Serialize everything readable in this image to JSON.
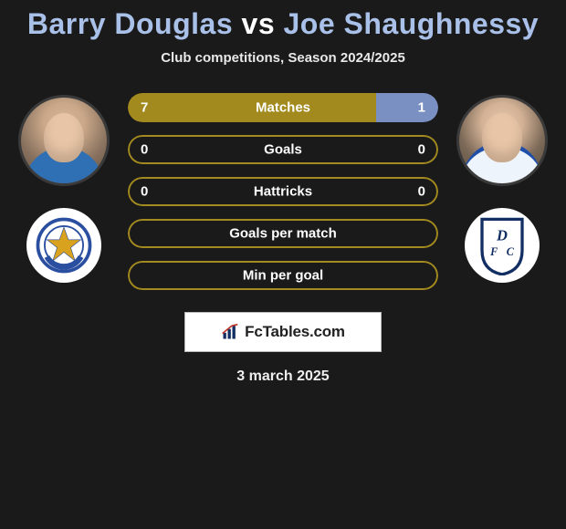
{
  "colors": {
    "accent1": "#a38a1f",
    "accent2": "#7a8fc2",
    "bar_border": "#a38a1f",
    "background": "#1a1a1a",
    "title_p1": "#a9c0e8",
    "title_p2": "#a9c0e8",
    "club1_primary": "#2b4fa0",
    "club1_secondary": "#d8a21e",
    "club2_primary": "#122e63"
  },
  "title": {
    "player1": "Barry Douglas",
    "vs": "vs",
    "player2": "Joe Shaughnessy"
  },
  "subtitle": "Club competitions, Season 2024/2025",
  "stats": [
    {
      "label": "Matches",
      "left_val": "7",
      "right_val": "1",
      "left_pct": 80,
      "right_pct": 20,
      "show_outline": false
    },
    {
      "label": "Goals",
      "left_val": "0",
      "right_val": "0",
      "left_pct": 0,
      "right_pct": 0,
      "show_outline": true
    },
    {
      "label": "Hattricks",
      "left_val": "0",
      "right_val": "0",
      "left_pct": 0,
      "right_pct": 0,
      "show_outline": true
    },
    {
      "label": "Goals per match",
      "left_val": "",
      "right_val": "",
      "left_pct": 0,
      "right_pct": 0,
      "show_outline": true
    },
    {
      "label": "Min per goal",
      "left_val": "",
      "right_val": "",
      "left_pct": 0,
      "right_pct": 0,
      "show_outline": true
    }
  ],
  "brand": "FcTables.com",
  "date": "3 march 2025",
  "icons": {
    "player1": "player-avatar",
    "player2": "player-avatar",
    "club1": "st-johnstone-crest",
    "club2": "dundee-fc-crest",
    "brand": "bar-chart-icon"
  }
}
